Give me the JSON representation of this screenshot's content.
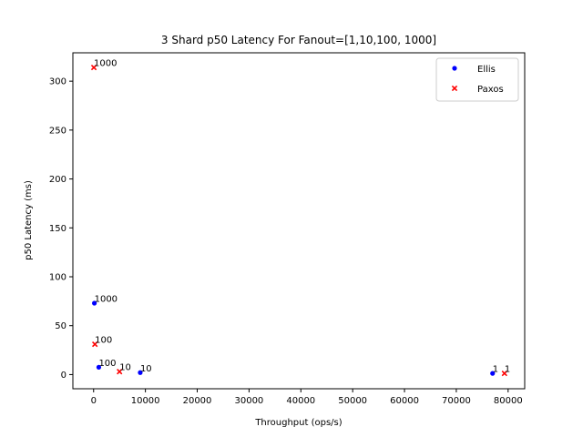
{
  "chart_data": {
    "type": "scatter",
    "title": "3 Shard p50 Latency For Fanout=[1,10,100, 1000]",
    "xlabel": "Throughput (ops/s)",
    "ylabel": "p50 Latency (ms)",
    "xlim": [
      -4000,
      83200
    ],
    "ylim": [
      -14.5,
      329
    ],
    "xticks": [
      0,
      10000,
      20000,
      30000,
      40000,
      50000,
      60000,
      70000,
      80000
    ],
    "yticks": [
      0,
      50,
      100,
      150,
      200,
      250,
      300
    ],
    "grid": false,
    "legend": "top-right",
    "series": [
      {
        "name": "Ellis",
        "color": "#0000ff",
        "marker": "circle",
        "points": [
          {
            "x": 77000,
            "y": 1.2,
            "label": "1"
          },
          {
            "x": 9000,
            "y": 2.0,
            "label": "10"
          },
          {
            "x": 1000,
            "y": 7.5,
            "label": "100"
          },
          {
            "x": 150,
            "y": 73,
            "label": "1000"
          }
        ]
      },
      {
        "name": "Paxos",
        "color": "#ff0000",
        "marker": "x",
        "points": [
          {
            "x": 79300,
            "y": 1.2,
            "label": "1"
          },
          {
            "x": 5000,
            "y": 3.0,
            "label": "10"
          },
          {
            "x": 250,
            "y": 31,
            "label": "100"
          },
          {
            "x": 50,
            "y": 314,
            "label": "1000"
          }
        ]
      }
    ]
  }
}
